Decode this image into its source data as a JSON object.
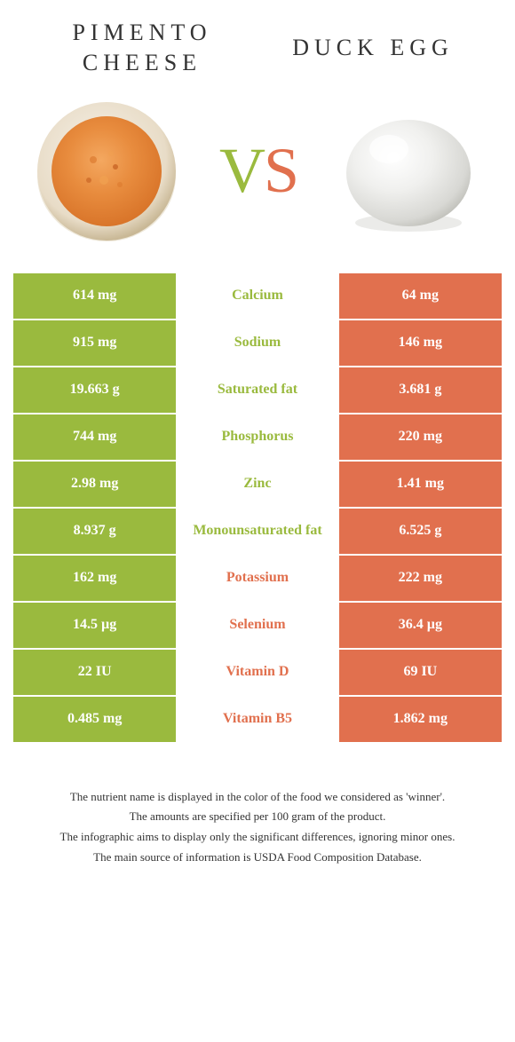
{
  "colors": {
    "green": "#9aba3e",
    "orange": "#e1704e",
    "text": "#333333",
    "background": "#ffffff"
  },
  "header": {
    "left_line1": "PIMENTO",
    "left_line2": "CHEESE",
    "right": "DUCK EGG",
    "vs_v": "V",
    "vs_s": "S"
  },
  "rows": [
    {
      "left": "614 mg",
      "label": "Calcium",
      "right": "64 mg",
      "winner": "left"
    },
    {
      "left": "915 mg",
      "label": "Sodium",
      "right": "146 mg",
      "winner": "left"
    },
    {
      "left": "19.663 g",
      "label": "Saturated fat",
      "right": "3.681 g",
      "winner": "left"
    },
    {
      "left": "744 mg",
      "label": "Phosphorus",
      "right": "220 mg",
      "winner": "left"
    },
    {
      "left": "2.98 mg",
      "label": "Zinc",
      "right": "1.41 mg",
      "winner": "left"
    },
    {
      "left": "8.937 g",
      "label": "Monounsaturated fat",
      "right": "6.525 g",
      "winner": "left"
    },
    {
      "left": "162 mg",
      "label": "Potassium",
      "right": "222 mg",
      "winner": "right"
    },
    {
      "left": "14.5 µg",
      "label": "Selenium",
      "right": "36.4 µg",
      "winner": "right"
    },
    {
      "left": "22 IU",
      "label": "Vitamin D",
      "right": "69 IU",
      "winner": "right"
    },
    {
      "left": "0.485 mg",
      "label": "Vitamin B5",
      "right": "1.862 mg",
      "winner": "right"
    }
  ],
  "footnotes": [
    "The nutrient name is displayed in the color of the food we considered as 'winner'.",
    "The amounts are specified per 100 gram of the product.",
    "The infographic aims to display only the significant differences, ignoring minor ones.",
    "The main source of information is USDA Food Composition Database."
  ]
}
